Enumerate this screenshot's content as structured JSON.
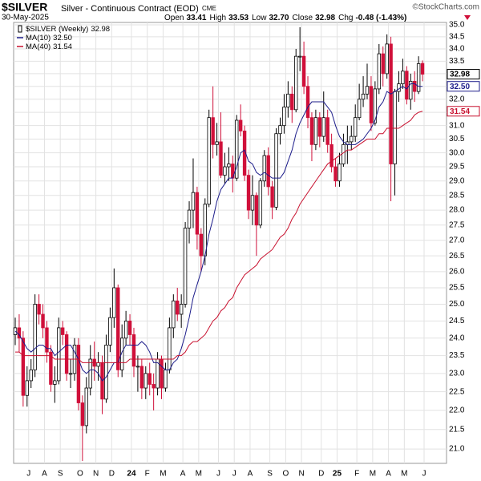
{
  "chart_data": {
    "type": "candlestick",
    "header": {
      "ticker": "$SILVER",
      "name": "Silver - Continuous Contract (EOD)",
      "exchange": "CME",
      "copyright": "©StockCharts.com",
      "date": "30-May-2025",
      "stats": [
        {
          "label": "Open",
          "value": "33.41"
        },
        {
          "label": "High",
          "value": "33.53"
        },
        {
          "label": "Low",
          "value": "32.70"
        },
        {
          "label": "Close",
          "value": "32.98"
        },
        {
          "label": "Chg",
          "value": "-0.48 (-1.43%)"
        }
      ]
    },
    "log_scale": true,
    "grid": true,
    "legend": "top-left",
    "ylim": [
      20.64,
      35.1
    ],
    "yticks": [
      {
        "value": 21,
        "label": "21.0"
      },
      21.5,
      {
        "value": 22,
        "label": "22.0"
      },
      22.5,
      {
        "value": 23,
        "label": "23.0"
      },
      23.5,
      {
        "value": 24,
        "label": "24.0"
      },
      24.5,
      {
        "value": 25,
        "label": "25.0"
      },
      25.5,
      {
        "value": 26,
        "label": "26.0"
      },
      26.5,
      {
        "value": 27,
        "label": "27.0"
      },
      27.5,
      {
        "value": 28,
        "label": "28.0"
      },
      28.5,
      {
        "value": 29,
        "label": "29.0"
      },
      29.5,
      {
        "value": 30,
        "label": "30.0"
      },
      30.5,
      {
        "value": 31,
        "label": "31.0"
      },
      31.5,
      {
        "value": 32,
        "label": "32.0"
      },
      32.5,
      {
        "value": 33,
        "label": "33.0"
      },
      33.5,
      {
        "value": 34,
        "label": "34.0"
      },
      34.5,
      {
        "value": 35,
        "label": "35.0"
      }
    ],
    "categories": [
      null,
      null,
      null,
      null,
      "J",
      null,
      null,
      null,
      "A",
      null,
      null,
      null,
      "S",
      null,
      null,
      null,
      null,
      "O",
      null,
      null,
      null,
      "N",
      null,
      null,
      null,
      "D",
      null,
      null,
      null,
      null,
      "24",
      null,
      null,
      null,
      "F",
      null,
      null,
      null,
      "M",
      null,
      null,
      null,
      null,
      "A",
      null,
      null,
      null,
      "M",
      null,
      null,
      null,
      null,
      "J",
      null,
      null,
      null,
      "J",
      null,
      null,
      null,
      "A",
      null,
      null,
      null,
      null,
      "S",
      null,
      null,
      null,
      "O",
      null,
      null,
      null,
      "N",
      null,
      null,
      null,
      null,
      "D",
      null,
      null,
      null,
      "25",
      null,
      null,
      null,
      null,
      "F",
      null,
      null,
      null,
      "M",
      null,
      null,
      null,
      "A",
      null,
      null,
      null,
      "M",
      null,
      null,
      null,
      null,
      "J"
    ],
    "series": [
      {
        "name": "$SILVER (Weekly)",
        "last_label": "32.98",
        "color": "#000000",
        "down_color": "#d0103a",
        "open": [
          24.1,
          24.3,
          24.0,
          22.4,
          22.8,
          23.1,
          25.0,
          24.7,
          24.3,
          23.6,
          22.7,
          22.8,
          24.3,
          24.1,
          23.0,
          23.0,
          23.8,
          22.2,
          21.6,
          22.6,
          23.4,
          23.2,
          23.3,
          22.3,
          23.8,
          24.6,
          25.5,
          23.1,
          24.0,
          24.5,
          24.1,
          23.2,
          23.2,
          22.6,
          23.0,
          22.7,
          22.6,
          23.4,
          22.6,
          23.1,
          24.3,
          25.1,
          24.7,
          25.0,
          27.4,
          28.0,
          28.6,
          27.2,
          26.5,
          28.2,
          31.3,
          30.3,
          30.4,
          29.2,
          29.5,
          29.6,
          29.1,
          31.2,
          30.8,
          29.2,
          28.0,
          28.5,
          27.5,
          29.0,
          29.9,
          28.8,
          28.1,
          30.7,
          31.0,
          31.7,
          32.2,
          31.6,
          33.7,
          33.7,
          32.5,
          31.3,
          30.3,
          31.3,
          30.6,
          31.3,
          30.3,
          29.5,
          29.0,
          29.6,
          30.3,
          30.4,
          30.6,
          31.3,
          32.0,
          32.2,
          32.5,
          31.1,
          32.4,
          33.8,
          33.0,
          34.2,
          29.6,
          32.3,
          32.6,
          33.1,
          32.0,
          32.7,
          32.3,
          33.41,
          null
        ],
        "high": [
          24.6,
          24.7,
          24.2,
          23.2,
          23.4,
          25.3,
          25.3,
          25.0,
          24.5,
          23.8,
          23.2,
          24.6,
          24.5,
          24.2,
          23.4,
          24.0,
          24.0,
          22.4,
          22.9,
          23.8,
          23.9,
          23.6,
          23.5,
          24.1,
          24.9,
          26.1,
          25.6,
          24.4,
          24.8,
          24.7,
          24.3,
          23.5,
          23.4,
          23.2,
          23.3,
          23.0,
          23.6,
          23.5,
          23.3,
          24.6,
          25.3,
          25.5,
          25.3,
          27.6,
          28.3,
          29.8,
          28.8,
          27.4,
          28.4,
          31.6,
          32.5,
          31.1,
          31.5,
          30.0,
          30.2,
          29.9,
          31.4,
          31.8,
          31.0,
          29.4,
          29.2,
          28.6,
          29.1,
          30.1,
          30.2,
          29.0,
          30.9,
          31.3,
          32.2,
          32.7,
          32.5,
          34.0,
          34.9,
          34.3,
          32.9,
          31.5,
          31.6,
          31.5,
          32.3,
          31.6,
          30.7,
          29.8,
          30.0,
          30.7,
          31.0,
          31.0,
          31.8,
          32.6,
          32.9,
          33.4,
          32.9,
          32.7,
          34.2,
          34.1,
          34.6,
          34.5,
          32.4,
          33.1,
          33.6,
          33.3,
          33.0,
          33.1,
          33.7,
          33.53,
          null
        ],
        "low": [
          23.8,
          23.6,
          22.1,
          22.1,
          22.6,
          22.9,
          24.4,
          24.0,
          23.3,
          22.5,
          22.2,
          22.7,
          23.8,
          22.8,
          22.6,
          22.8,
          22.0,
          20.7,
          21.4,
          22.4,
          22.8,
          22.8,
          21.9,
          22.2,
          23.6,
          24.3,
          22.9,
          22.9,
          23.8,
          23.8,
          22.9,
          22.5,
          22.3,
          22.3,
          22.4,
          22.0,
          22.4,
          22.3,
          22.5,
          23.0,
          24.0,
          24.5,
          24.3,
          24.9,
          26.9,
          27.4,
          26.7,
          26.0,
          26.2,
          28.1,
          29.8,
          29.9,
          29.1,
          28.9,
          29.0,
          28.6,
          29.0,
          30.6,
          29.0,
          27.7,
          27.5,
          26.5,
          27.4,
          28.8,
          28.5,
          27.7,
          28.0,
          30.3,
          30.7,
          31.3,
          31.1,
          31.5,
          33.1,
          32.2,
          30.9,
          29.7,
          30.1,
          30.2,
          30.4,
          30.0,
          29.3,
          28.8,
          28.8,
          29.5,
          29.6,
          30.1,
          30.4,
          31.2,
          31.7,
          32.0,
          30.8,
          31.0,
          32.2,
          32.5,
          32.8,
          28.3,
          28.5,
          31.9,
          32.4,
          31.8,
          31.6,
          31.9,
          32.2,
          32.7,
          null
        ],
        "close": [
          24.3,
          24.0,
          22.4,
          22.8,
          23.1,
          25.0,
          24.7,
          24.3,
          23.6,
          22.7,
          22.8,
          24.3,
          24.1,
          23.0,
          23.0,
          23.8,
          22.2,
          21.6,
          22.6,
          23.4,
          23.2,
          23.3,
          22.3,
          23.8,
          24.6,
          25.5,
          23.1,
          24.0,
          24.5,
          24.1,
          23.2,
          23.2,
          22.6,
          23.0,
          22.7,
          22.6,
          23.4,
          22.6,
          23.1,
          24.3,
          25.1,
          24.7,
          25.0,
          27.4,
          28.0,
          28.6,
          27.2,
          26.5,
          28.2,
          31.3,
          30.3,
          30.4,
          29.2,
          29.5,
          29.6,
          29.1,
          31.2,
          30.8,
          29.2,
          28.0,
          28.5,
          27.5,
          29.0,
          29.9,
          28.8,
          28.1,
          30.7,
          31.0,
          31.7,
          32.2,
          31.6,
          33.7,
          33.7,
          32.5,
          31.3,
          30.3,
          31.3,
          30.6,
          31.3,
          30.3,
          29.5,
          29.0,
          29.6,
          30.3,
          30.4,
          30.6,
          31.3,
          32.0,
          32.2,
          32.5,
          31.1,
          32.4,
          33.8,
          33.0,
          34.2,
          29.6,
          32.3,
          32.6,
          33.1,
          32.0,
          32.7,
          32.3,
          33.4,
          32.98,
          null
        ]
      },
      {
        "name": "MA(10)",
        "last_label": "32.50",
        "color": "#1c1c8a",
        "values": [
          24.2,
          24.1,
          23.9,
          23.7,
          23.6,
          23.7,
          23.8,
          23.8,
          23.7,
          23.7,
          23.5,
          23.6,
          23.7,
          23.8,
          23.8,
          23.6,
          23.4,
          23.1,
          23.0,
          23.1,
          23.1,
          23.0,
          22.8,
          22.9,
          23.1,
          23.3,
          23.3,
          23.6,
          23.8,
          23.8,
          23.8,
          23.8,
          23.9,
          23.8,
          23.6,
          23.3,
          23.3,
          23.2,
          23.1,
          23.1,
          23.3,
          23.4,
          23.7,
          24.1,
          24.6,
          25.2,
          25.6,
          26.0,
          26.5,
          27.2,
          27.7,
          28.3,
          28.7,
          28.9,
          29.1,
          29.1,
          29.5,
          30.0,
          30.1,
          29.7,
          29.6,
          29.3,
          29.2,
          29.3,
          29.2,
          29.1,
          29.1,
          29.1,
          29.3,
          29.7,
          30.1,
          30.7,
          31.1,
          31.4,
          31.7,
          31.9,
          31.9,
          31.9,
          31.9,
          31.7,
          31.5,
          31.0,
          30.6,
          30.4,
          30.3,
          30.3,
          30.3,
          30.4,
          30.5,
          30.7,
          30.9,
          31.2,
          31.7,
          31.9,
          32.3,
          32.2,
          32.3,
          32.4,
          32.5,
          32.4,
          32.6,
          32.6,
          32.5,
          32.5,
          null
        ]
      },
      {
        "name": "MA(40)",
        "last_label": "31.54",
        "color": "#c8102e",
        "values": [
          23.6,
          23.6,
          23.5,
          23.5,
          23.5,
          23.5,
          23.5,
          23.5,
          23.5,
          23.5,
          23.4,
          23.4,
          23.4,
          23.4,
          23.4,
          23.4,
          23.4,
          23.3,
          23.3,
          23.3,
          23.3,
          23.3,
          23.3,
          23.3,
          23.3,
          23.3,
          23.3,
          23.3,
          23.3,
          23.4,
          23.4,
          23.4,
          23.4,
          23.4,
          23.4,
          23.4,
          23.4,
          23.4,
          23.4,
          23.4,
          23.4,
          23.5,
          23.5,
          23.6,
          23.8,
          23.9,
          23.9,
          24.0,
          24.1,
          24.3,
          24.5,
          24.6,
          24.8,
          24.9,
          25.1,
          25.2,
          25.5,
          25.7,
          25.9,
          26.0,
          26.1,
          26.2,
          26.4,
          26.5,
          26.6,
          26.7,
          26.9,
          27.1,
          27.2,
          27.4,
          27.7,
          27.9,
          28.2,
          28.4,
          28.6,
          28.8,
          29.0,
          29.2,
          29.4,
          29.6,
          29.7,
          29.8,
          29.9,
          30.0,
          30.1,
          30.1,
          30.2,
          30.3,
          30.4,
          30.5,
          30.5,
          30.5,
          30.7,
          30.7,
          30.9,
          30.9,
          30.9,
          30.9,
          31.0,
          31.1,
          31.2,
          31.4,
          31.5,
          31.54,
          null
        ]
      }
    ]
  }
}
